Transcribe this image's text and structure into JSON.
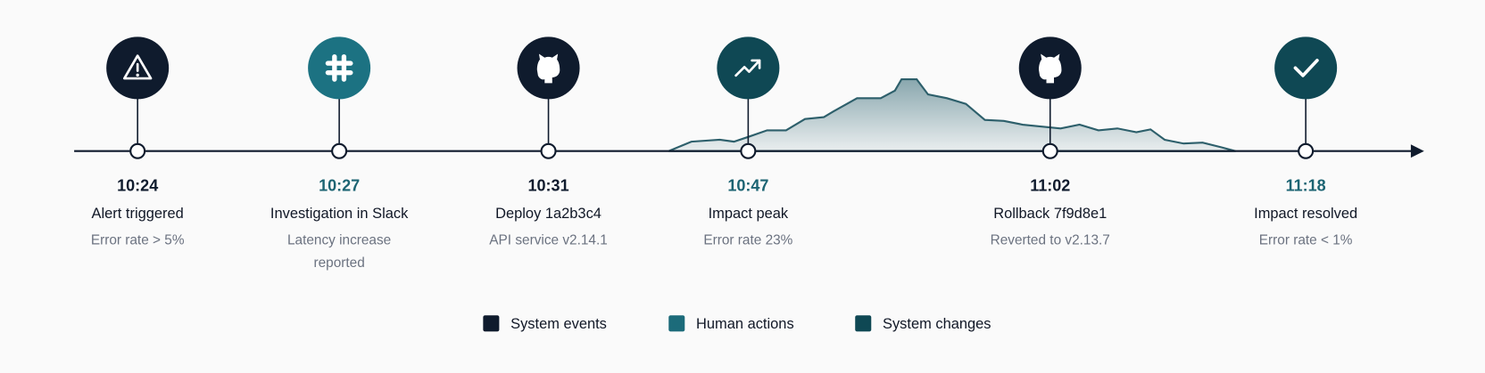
{
  "events": [
    {
      "time": "10:24",
      "title": "Alert triggered",
      "subtitle": "Error rate > 5%",
      "icon": "alert",
      "color": "#0f1b2d",
      "time_color": "#0f1b2d"
    },
    {
      "time": "10:27",
      "title": "Investigation in Slack",
      "subtitle": "Latency increase reported",
      "icon": "slack",
      "color": "#1c7282",
      "time_color": "#1c6473"
    },
    {
      "time": "10:31",
      "title": "Deploy 1a2b3c4",
      "subtitle": "API service v2.14.1",
      "icon": "github",
      "color": "#0f1b2d",
      "time_color": "#0f1b2d"
    },
    {
      "time": "10:47",
      "title": "Impact peak",
      "subtitle": "Error rate 23%",
      "icon": "trend",
      "color": "#0f4854",
      "time_color": "#1c6473"
    },
    {
      "time": "11:02",
      "title": "Rollback 7f9d8e1",
      "subtitle": "Reverted to v2.13.7",
      "icon": "github",
      "color": "#0f1b2d",
      "time_color": "#0f1b2d"
    },
    {
      "time": "11:18",
      "title": "Impact resolved",
      "subtitle": "Error rate < 1%",
      "icon": "check",
      "color": "#0f4854",
      "time_color": "#1c6473"
    }
  ],
  "legend": [
    {
      "label": "System events",
      "color": "#0f1b2d"
    },
    {
      "label": "Human actions",
      "color": "#1c6b7a"
    },
    {
      "label": "System changes",
      "color": "#0f4854"
    }
  ]
}
